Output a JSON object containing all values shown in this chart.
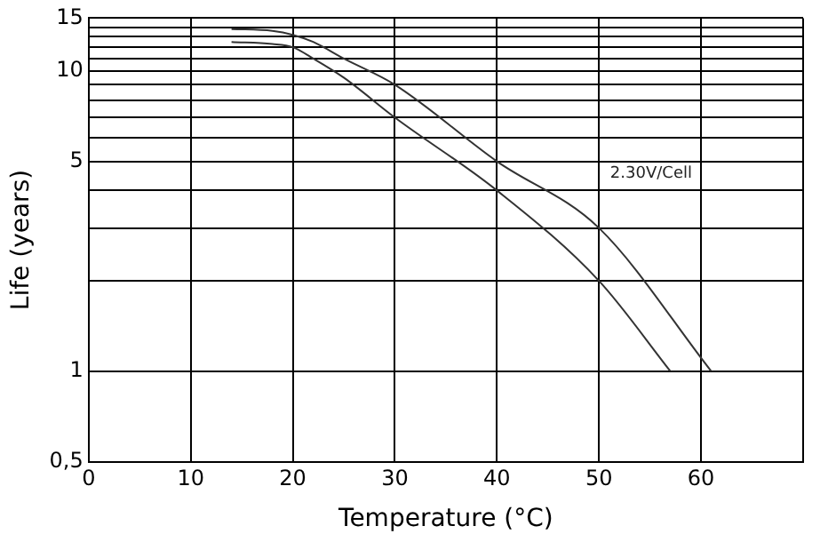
{
  "chart_data": {
    "type": "line",
    "xlabel": "Temperature (°C)",
    "ylabel": "Life (years)",
    "log": "y",
    "grid": true,
    "legend": false,
    "marker": "none",
    "line_style": "solid",
    "xlim": [
      0,
      70
    ],
    "xticks": [
      0,
      10,
      20,
      30,
      40,
      50,
      60,
      {
        "value": 70,
        "label": null
      }
    ],
    "ylim": [
      0.5,
      15
    ],
    "yticks": [
      {
        "value": 0.5,
        "label": "0,5"
      },
      1,
      {
        "value": 2,
        "label": null
      },
      {
        "value": 3,
        "label": null
      },
      {
        "value": 4,
        "label": null
      },
      5,
      {
        "value": 6,
        "label": null
      },
      {
        "value": 7,
        "label": null
      },
      {
        "value": 8,
        "label": null
      },
      {
        "value": 9,
        "label": null
      },
      10,
      {
        "value": 11,
        "label": null
      },
      {
        "value": 12,
        "label": null
      },
      {
        "value": 13,
        "label": null
      },
      {
        "value": 14,
        "label": null
      },
      15
    ],
    "series": [
      {
        "color": "#333333",
        "x": [
          14,
          18,
          20,
          22,
          25,
          30,
          40,
          50,
          61
        ],
        "values": [
          13.8,
          13.6,
          13.2,
          12.5,
          11,
          9,
          5,
          3,
          1
        ]
      },
      {
        "color": "#333333",
        "x": [
          14,
          18,
          20,
          22,
          25,
          30,
          40,
          50,
          57
        ],
        "values": [
          12.5,
          12.3,
          12,
          11,
          9.5,
          7,
          4,
          2,
          1
        ]
      }
    ],
    "annotations": [
      "2.30V/Cell"
    ]
  }
}
